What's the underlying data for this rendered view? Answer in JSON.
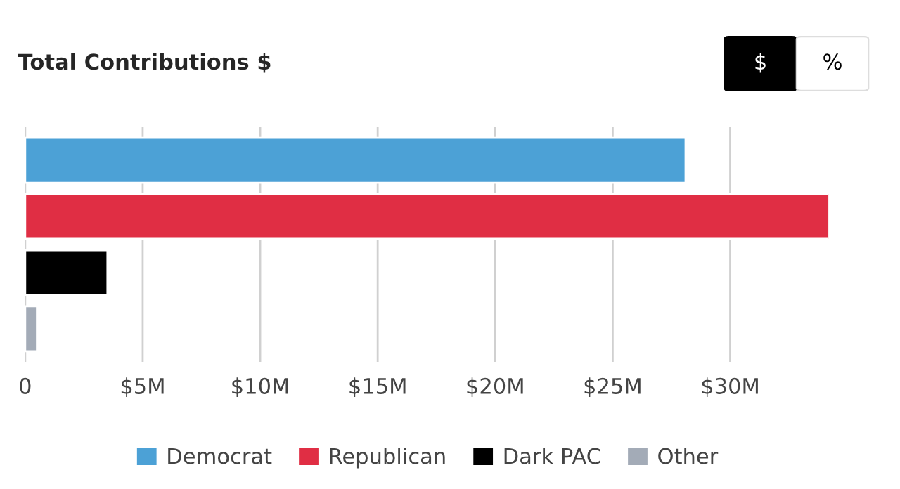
{
  "chart_data": {
    "type": "bar",
    "orientation": "horizontal",
    "title": "Total Contributions $",
    "annotations": [
      "$",
      "%"
    ],
    "categories": [
      null
    ],
    "series": [
      {
        "name": "Democrat",
        "color": "#4ca1d6",
        "values": [
          28.1
        ]
      },
      {
        "name": "Republican",
        "color": "#e02e44",
        "values": [
          34.2
        ]
      },
      {
        "name": "Dark PAC",
        "color": "#000000",
        "values": [
          3.5
        ]
      },
      {
        "name": "Other",
        "color": "#a3abb7",
        "values": [
          0.5
        ]
      }
    ],
    "xlim": [
      0,
      34.2
    ],
    "xticks": [
      0,
      {
        "value": 5,
        "label": "$5M"
      },
      {
        "value": 10,
        "label": "$10M"
      },
      {
        "value": 15,
        "label": "$15M"
      },
      {
        "value": 20,
        "label": "$20M"
      },
      {
        "value": 25,
        "label": "$25M"
      },
      {
        "value": 30,
        "label": "$30M"
      }
    ],
    "grid": "x",
    "legend": "bottom"
  }
}
